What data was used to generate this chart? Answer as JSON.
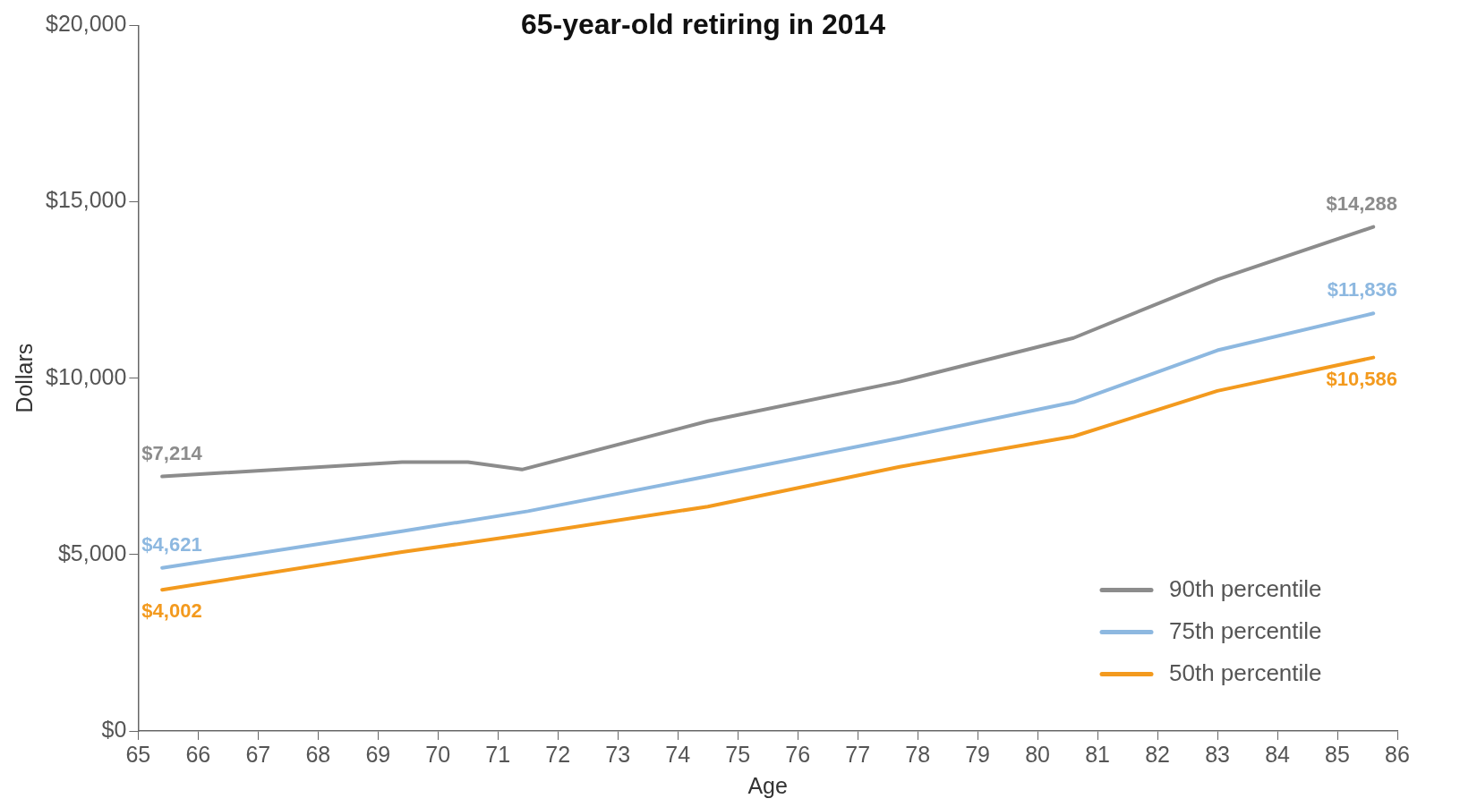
{
  "chart_data": {
    "type": "line",
    "title": "65-year-old retiring in 2014",
    "xlabel": "Age",
    "ylabel": "Dollars",
    "xlim": [
      65,
      86
    ],
    "xticks": [
      65,
      66,
      67,
      68,
      69,
      70,
      71,
      72,
      73,
      74,
      75,
      76,
      77,
      78,
      79,
      80,
      81,
      82,
      83,
      84,
      85,
      86
    ],
    "ylim": [
      0,
      20000
    ],
    "yticks": [
      {
        "value": 0,
        "label": "$0"
      },
      {
        "value": 5000,
        "label": "$5,000"
      },
      {
        "value": 10000,
        "label": "$10,000"
      },
      {
        "value": 15000,
        "label": "$15,000"
      },
      {
        "value": 20000,
        "label": "$20,000"
      }
    ],
    "grid": false,
    "legend": "bottom right",
    "marker": "none",
    "line_style": "solid",
    "series": [
      {
        "name": "90th percentile",
        "color": "#8c8c8c",
        "x": [
          65.4,
          69.4,
          70.5,
          71.4,
          74.5,
          77.7,
          80.6,
          83,
          85.6
        ],
        "values": [
          7214,
          7620,
          7620,
          7410,
          8780,
          9900,
          11140,
          12800,
          14288
        ],
        "value_labels": [
          "$7,214",
          null,
          null,
          null,
          null,
          null,
          null,
          null,
          "$14,288"
        ]
      },
      {
        "name": "75th percentile",
        "color": "#8db8e0",
        "x": [
          65.4,
          69.4,
          71.5,
          74.5,
          77.7,
          80.6,
          83,
          85.6
        ],
        "values": [
          4621,
          5660,
          6230,
          7220,
          8300,
          9320,
          10790,
          11836
        ],
        "value_labels": [
          "$4,621",
          null,
          null,
          null,
          null,
          null,
          null,
          "$11,836"
        ]
      },
      {
        "name": "50th percentile",
        "color": "#f39a1e",
        "x": [
          65.4,
          69.4,
          71.5,
          74.5,
          77.7,
          80.6,
          83,
          85.6
        ],
        "values": [
          4002,
          5070,
          5580,
          6360,
          7490,
          8350,
          9640,
          10586
        ],
        "value_labels": [
          "$4,002",
          null,
          null,
          null,
          null,
          null,
          null,
          "$10,586"
        ]
      }
    ]
  }
}
